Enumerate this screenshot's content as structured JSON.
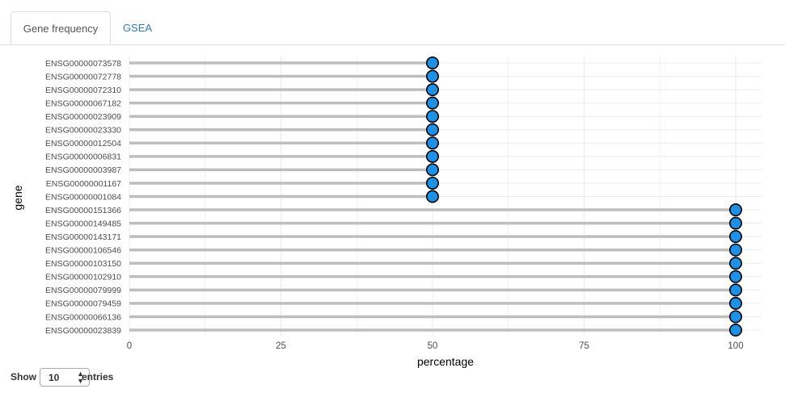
{
  "tabs": [
    {
      "label": "Gene frequency",
      "active": true
    },
    {
      "label": "GSEA",
      "active": false
    }
  ],
  "chart_data": {
    "type": "lollipop",
    "xlabel": "percentage",
    "ylabel": "gene",
    "xlim": [
      0,
      100
    ],
    "xticks": [
      0,
      25,
      50,
      75,
      100
    ],
    "grid": true,
    "categories": [
      "ENSG00000073578",
      "ENSG00000072778",
      "ENSG00000072310",
      "ENSG00000067182",
      "ENSG00000023909",
      "ENSG00000023330",
      "ENSG00000012504",
      "ENSG00000006831",
      "ENSG00000003987",
      "ENSG00000001167",
      "ENSG00000001084",
      "ENSG00000151366",
      "ENSG00000149485",
      "ENSG00000143171",
      "ENSG00000106546",
      "ENSG00000103150",
      "ENSG00000102910",
      "ENSG00000079999",
      "ENSG00000079459",
      "ENSG00000066136",
      "ENSG00000023839"
    ],
    "values": [
      50,
      50,
      50,
      50,
      50,
      50,
      50,
      50,
      50,
      50,
      50,
      100,
      100,
      100,
      100,
      100,
      100,
      100,
      100,
      100,
      100
    ],
    "colors": {
      "point": "#1e90e6",
      "stem": "#bebebe",
      "grid": "#ebebeb",
      "outline": "#000000"
    }
  },
  "footer": {
    "show_label": "Show",
    "entries_value": "10",
    "entries_label": "entries"
  }
}
